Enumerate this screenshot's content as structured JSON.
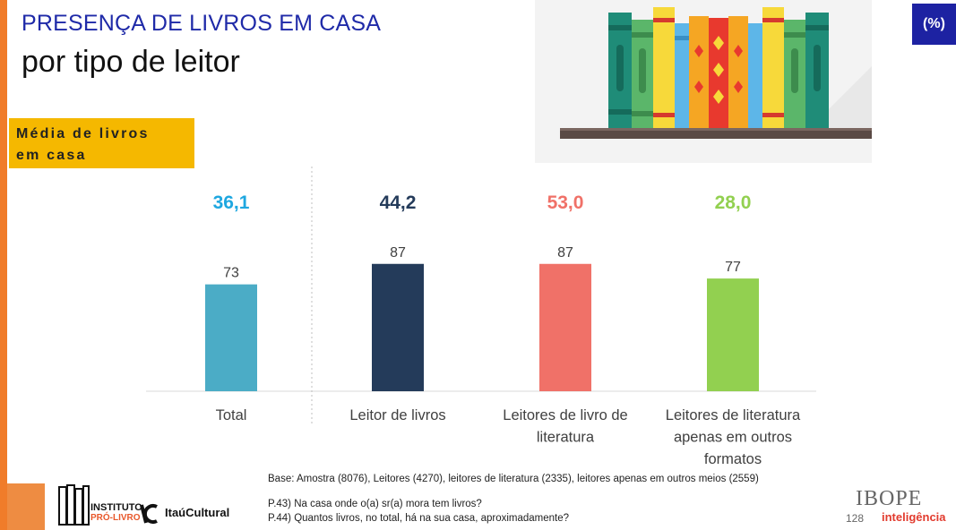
{
  "header": {
    "title_line1": "PRESENÇA DE LIVROS EM CASA",
    "title_line2": "por tipo de leitor",
    "unit_badge": "(%)",
    "avg_label_line1": "Média de livros",
    "avg_label_line2": "em casa"
  },
  "chart_data": {
    "type": "bar",
    "categories": [
      [
        "Total"
      ],
      [
        "Leitor de livros"
      ],
      [
        "Leitores de livro de",
        "literatura"
      ],
      [
        "Leitores de literatura",
        "apenas em outros",
        "formatos"
      ]
    ],
    "values": [
      73,
      87,
      87,
      77
    ],
    "bar_colors": [
      "#4bacc6",
      "#243b5a",
      "#f07168",
      "#92d050"
    ],
    "averages": [
      "36,1",
      "44,2",
      "53,0",
      "28,0"
    ],
    "average_colors": [
      "#1ea7e0",
      "#243b5a",
      "#f07168",
      "#92d050"
    ],
    "ylim": [
      0,
      100
    ]
  },
  "footer": {
    "base": "Base: Amostra (8076), Leitores (4270), leitores de literatura (2335), leitores apenas em outros meios (2559)",
    "question1": "P.43) Na casa onde o(a) sr(a) mora tem livros?",
    "question2": "P.44) Quantos livros, no total, há na sua casa, aproximadamente?",
    "page_number": "128",
    "ibope_logo_text": "IBOPE",
    "ibope_sub": "inteligência",
    "ipl_line1": "INSTITUTO",
    "ipl_line2": "PRÓ-LIVRO",
    "itau_text": "ItaúCultural"
  },
  "icons": [
    "bookshelf-illustration",
    "pro-livro-logo-icon"
  ]
}
